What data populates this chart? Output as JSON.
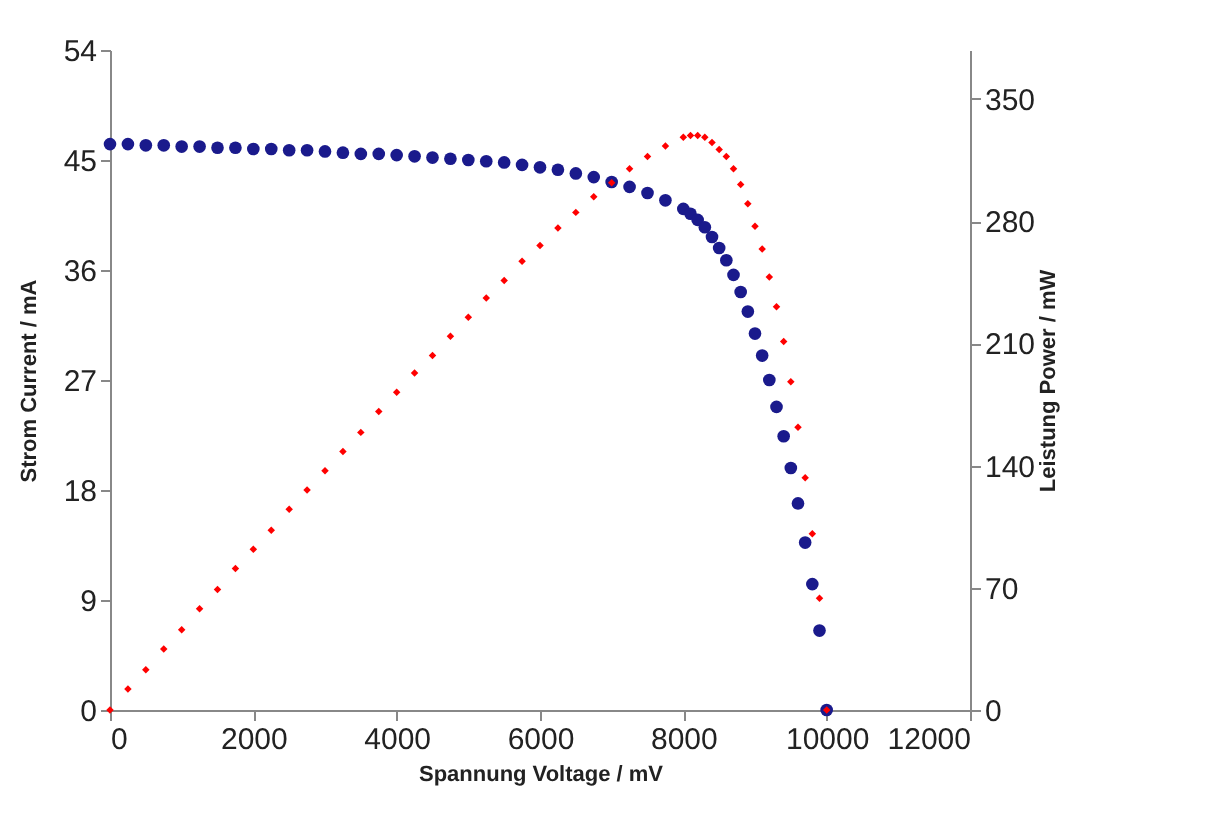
{
  "chart_data": {
    "type": "scatter",
    "xlabel": "Spannung Voltage / mV",
    "ylabel": "Strom Current / mA",
    "y2label": "Leistung Power / mW",
    "x": [
      0,
      250,
      500,
      750,
      1000,
      1250,
      1500,
      1750,
      2000,
      2250,
      2500,
      2750,
      3000,
      3250,
      3500,
      3750,
      4000,
      4250,
      4500,
      4750,
      5000,
      5250,
      5500,
      5750,
      6000,
      6250,
      6500,
      6750,
      7000,
      7250,
      7500,
      7750,
      8000,
      8100,
      8200,
      8300,
      8400,
      8500,
      8600,
      8700,
      8800,
      8900,
      9000,
      9100,
      9200,
      9300,
      9400,
      9500,
      9600,
      9700,
      9800,
      9900,
      10000
    ],
    "series": [
      {
        "color": "#1a1a8c",
        "marker": "circle",
        "values": [
          46.3,
          46.3,
          46.2,
          46.2,
          46.1,
          46.1,
          46.0,
          46.0,
          45.9,
          45.9,
          45.8,
          45.8,
          45.7,
          45.6,
          45.5,
          45.5,
          45.4,
          45.3,
          45.2,
          45.1,
          45.0,
          44.9,
          44.8,
          44.6,
          44.4,
          44.2,
          43.9,
          43.6,
          43.2,
          42.8,
          42.3,
          41.7,
          41.0,
          40.6,
          40.1,
          39.5,
          38.7,
          37.8,
          36.8,
          35.6,
          34.2,
          32.6,
          30.8,
          29.0,
          27.0,
          24.8,
          22.4,
          19.8,
          16.9,
          13.7,
          10.3,
          6.5,
          0
        ]
      },
      {
        "color": "#ff0000",
        "marker": "diamond",
        "axis": "y2",
        "values": [
          0,
          12,
          23,
          35,
          46,
          58,
          69,
          81,
          92,
          103,
          115,
          126,
          137,
          148,
          159,
          171,
          182,
          193,
          203,
          214,
          225,
          236,
          246,
          257,
          266,
          276,
          285,
          294,
          302,
          310,
          317,
          323,
          328,
          329,
          329,
          328,
          325,
          321,
          317,
          310,
          301,
          290,
          277,
          264,
          248,
          231,
          211,
          188,
          162,
          133,
          101,
          64,
          0
        ]
      }
    ],
    "xlim": [
      0,
      12000
    ],
    "xticks": [
      0,
      2000,
      4000,
      6000,
      8000,
      10000,
      12000
    ],
    "ylim": [
      0,
      54
    ],
    "yticks": [
      0,
      9,
      18,
      27,
      36,
      45,
      54
    ],
    "y2lim": [
      0,
      378
    ],
    "y2ticks": [
      0,
      70,
      140,
      210,
      280,
      350
    ],
    "grid": false
  }
}
